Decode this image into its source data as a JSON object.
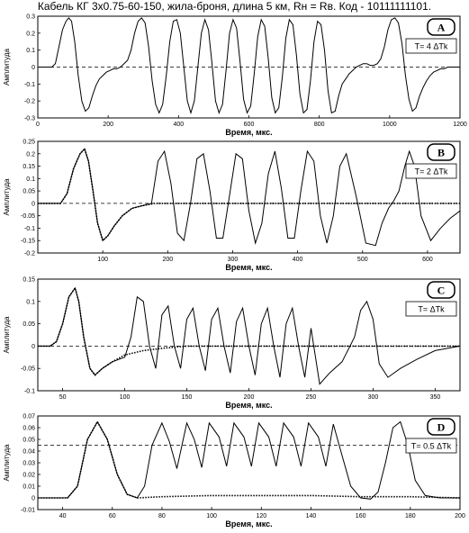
{
  "page": {
    "title": "Кабель КГ 3x0.75-60-150, жила-броня, длина 5 км, Rн = Rв. Код - 10111111101."
  },
  "chart_data": [
    {
      "type": "line",
      "badge": "A",
      "annotation": "T= 4 ΔTk",
      "xlabel": "Время,  мкс.",
      "ylabel": "Амплитуда",
      "xlim": [
        0,
        1200
      ],
      "ylim": [
        -0.3,
        0.3
      ],
      "xticks": [
        0,
        200,
        400,
        600,
        800,
        1000,
        1200
      ],
      "yticks": [
        -0.3,
        -0.2,
        -0.1,
        0,
        0.1,
        0.2,
        0.3
      ],
      "ytick_labels": [
        "-0.3",
        "-0.2",
        "-0.1",
        "0",
        "0.1",
        "0.2",
        "0.3"
      ],
      "baseline": 0,
      "series": [
        {
          "style": "solid",
          "x": [
            0,
            40,
            50,
            60,
            70,
            80,
            88,
            96,
            105,
            115,
            125,
            135,
            145,
            155,
            165,
            175,
            185,
            195,
            205,
            215,
            225,
            235,
            245,
            255,
            265,
            275,
            285,
            295,
            305,
            315,
            325,
            335,
            345,
            355,
            365,
            375,
            385,
            395,
            405,
            415,
            425,
            435,
            445,
            455,
            465,
            475,
            485,
            495,
            505,
            515,
            525,
            535,
            545,
            555,
            565,
            575,
            585,
            595,
            605,
            615,
            625,
            635,
            645,
            655,
            665,
            675,
            685,
            695,
            705,
            715,
            725,
            735,
            745,
            755,
            765,
            775,
            785,
            795,
            805,
            815,
            825,
            835,
            845,
            855,
            865,
            875,
            885,
            895,
            905,
            915,
            925,
            935,
            945,
            955,
            965,
            975,
            985,
            995,
            1005,
            1015,
            1025,
            1035,
            1045,
            1055,
            1065,
            1075,
            1085,
            1095,
            1105,
            1115,
            1125,
            1135,
            1145,
            1155,
            1165,
            1175,
            1185,
            1200
          ],
          "y": [
            0,
            0,
            0.02,
            0.12,
            0.22,
            0.27,
            0.29,
            0.27,
            0.15,
            -0.05,
            -0.2,
            -0.26,
            -0.24,
            -0.17,
            -0.11,
            -0.07,
            -0.05,
            -0.03,
            -0.02,
            -0.01,
            -0.01,
            0.0,
            0.02,
            0.04,
            0.1,
            0.2,
            0.27,
            0.29,
            0.26,
            0.12,
            -0.08,
            -0.22,
            -0.27,
            -0.22,
            -0.05,
            0.15,
            0.27,
            0.28,
            0.2,
            0.0,
            -0.2,
            -0.27,
            -0.2,
            0.0,
            0.2,
            0.28,
            0.22,
            0.02,
            -0.2,
            -0.27,
            -0.22,
            -0.02,
            0.2,
            0.28,
            0.23,
            0.03,
            -0.19,
            -0.27,
            -0.23,
            -0.04,
            0.18,
            0.28,
            0.24,
            0.05,
            -0.18,
            -0.27,
            -0.24,
            -0.06,
            0.17,
            0.28,
            0.25,
            0.07,
            -0.16,
            -0.27,
            -0.25,
            -0.08,
            0.15,
            0.27,
            0.25,
            0.1,
            -0.14,
            -0.27,
            -0.26,
            -0.17,
            -0.1,
            -0.07,
            -0.04,
            -0.02,
            0.0,
            0.01,
            0.02,
            0.02,
            0.01,
            0.01,
            0.02,
            0.05,
            0.12,
            0.22,
            0.28,
            0.29,
            0.26,
            0.14,
            -0.05,
            -0.19,
            -0.26,
            -0.24,
            -0.17,
            -0.12,
            -0.08,
            -0.05,
            -0.03,
            -0.02,
            -0.01,
            -0.01,
            0.0,
            0.0,
            0.0,
            0.0
          ]
        }
      ]
    },
    {
      "type": "line",
      "badge": "B",
      "annotation": "T= 2 ΔTk",
      "xlabel": "Время,  мкс.",
      "ylabel": "Амплитуда",
      "xlim": [
        0,
        650
      ],
      "ylim": [
        -0.2,
        0.25
      ],
      "xticks": [
        100,
        200,
        300,
        400,
        500,
        600
      ],
      "yticks": [
        -0.2,
        -0.15,
        -0.1,
        -0.05,
        0,
        0.05,
        0.1,
        0.15,
        0.2,
        0.25
      ],
      "ytick_labels": [
        "-0.2",
        "-0.15",
        "-0.1",
        "-0.05",
        "0",
        "0.05",
        "0.1",
        "0.15",
        "0.2",
        "0.25"
      ],
      "baseline": 0,
      "series": [
        {
          "style": "solid",
          "x": [
            0,
            35,
            45,
            55,
            65,
            72,
            78,
            85,
            92,
            100,
            108,
            118,
            130,
            145,
            160,
            175,
            185,
            195,
            205,
            215,
            225,
            235,
            245,
            255,
            265,
            275,
            285,
            295,
            305,
            315,
            325,
            335,
            345,
            355,
            365,
            375,
            385,
            395,
            405,
            415,
            425,
            435,
            445,
            455,
            465,
            475,
            490,
            505,
            520,
            530,
            540,
            548,
            556,
            565,
            572,
            580,
            590,
            605,
            620,
            635,
            650
          ],
          "y": [
            0,
            0.0,
            0.04,
            0.14,
            0.2,
            0.22,
            0.17,
            0.05,
            -0.08,
            -0.15,
            -0.13,
            -0.09,
            -0.05,
            -0.02,
            -0.01,
            0.0,
            0.17,
            0.21,
            0.08,
            -0.12,
            -0.15,
            0.0,
            0.18,
            0.2,
            0.05,
            -0.14,
            -0.14,
            0.03,
            0.2,
            0.18,
            -0.03,
            -0.16,
            -0.08,
            0.12,
            0.21,
            0.06,
            -0.14,
            -0.14,
            0.05,
            0.21,
            0.17,
            -0.05,
            -0.16,
            -0.05,
            0.15,
            0.2,
            0.03,
            -0.16,
            -0.17,
            -0.08,
            -0.02,
            0.01,
            0.05,
            0.15,
            0.21,
            0.15,
            -0.05,
            -0.15,
            -0.1,
            -0.06,
            -0.03
          ]
        },
        {
          "style": "dotted",
          "x": [
            0,
            35,
            45,
            55,
            65,
            72,
            78,
            85,
            92,
            100,
            108,
            118,
            130,
            145,
            160,
            180,
            200,
            240,
            280,
            320,
            360,
            400,
            440,
            480,
            520,
            560,
            600,
            650
          ],
          "y": [
            0,
            0.0,
            0.04,
            0.14,
            0.2,
            0.22,
            0.17,
            0.05,
            -0.08,
            -0.15,
            -0.13,
            -0.09,
            -0.05,
            -0.02,
            -0.01,
            0.0,
            0.0,
            0.0,
            0.0,
            0.0,
            0.0,
            0.0,
            0.0,
            0.0,
            0.0,
            0.0,
            0.0,
            0.0
          ]
        }
      ]
    },
    {
      "type": "line",
      "badge": "C",
      "annotation": "T= ΔTk",
      "xlabel": "Время,  мкс.",
      "ylabel": "Амплитуда",
      "xlim": [
        30,
        370
      ],
      "ylim": [
        -0.1,
        0.15
      ],
      "xticks": [
        50,
        100,
        150,
        200,
        250,
        300,
        350
      ],
      "yticks": [
        -0.1,
        -0.05,
        0,
        0.05,
        0.1,
        0.15
      ],
      "ytick_labels": [
        "-0.1",
        "-0.05",
        "0",
        "0.05",
        "0.1",
        "0.15"
      ],
      "baseline": 0,
      "series": [
        {
          "style": "solid",
          "x": [
            30,
            40,
            45,
            50,
            55,
            60,
            63,
            67,
            72,
            76,
            82,
            90,
            100,
            105,
            110,
            115,
            120,
            125,
            130,
            135,
            140,
            145,
            150,
            155,
            160,
            165,
            170,
            175,
            180,
            185,
            190,
            195,
            200,
            205,
            210,
            215,
            220,
            225,
            230,
            235,
            240,
            245,
            250,
            257,
            265,
            275,
            285,
            290,
            295,
            300,
            305,
            312,
            322,
            335,
            350,
            370
          ],
          "y": [
            0,
            0.0,
            0.01,
            0.05,
            0.11,
            0.13,
            0.1,
            0.02,
            -0.05,
            -0.065,
            -0.05,
            -0.035,
            -0.025,
            0.02,
            0.11,
            0.1,
            0.0,
            -0.05,
            0.07,
            0.09,
            0.0,
            -0.05,
            0.06,
            0.085,
            0.0,
            -0.055,
            0.06,
            0.085,
            0.0,
            -0.06,
            0.055,
            0.085,
            0.0,
            -0.065,
            0.05,
            0.085,
            0.0,
            -0.07,
            0.05,
            0.085,
            0.0,
            -0.07,
            0.04,
            -0.085,
            -0.06,
            -0.035,
            0.02,
            0.08,
            0.1,
            0.06,
            -0.04,
            -0.07,
            -0.05,
            -0.03,
            -0.01,
            0.0
          ]
        },
        {
          "style": "dotted",
          "x": [
            30,
            40,
            45,
            50,
            55,
            60,
            63,
            67,
            72,
            76,
            82,
            90,
            100,
            115,
            130,
            150,
            175,
            200,
            250,
            300,
            350,
            370
          ],
          "y": [
            0,
            0.0,
            0.01,
            0.05,
            0.11,
            0.13,
            0.1,
            0.02,
            -0.05,
            -0.065,
            -0.05,
            -0.035,
            -0.02,
            -0.01,
            -0.005,
            0.0,
            0.0,
            0.0,
            0.0,
            0.0,
            0.0,
            0.0
          ]
        }
      ]
    },
    {
      "type": "line",
      "badge": "D",
      "annotation": "T= 0.5 ΔTk",
      "xlabel": "Время,  мкс.",
      "ylabel": "Амплитуда",
      "xlim": [
        30,
        200
      ],
      "ylim": [
        -0.01,
        0.07
      ],
      "xticks": [
        40,
        60,
        80,
        100,
        120,
        140,
        160,
        180,
        200
      ],
      "yticks": [
        -0.01,
        0,
        0.01,
        0.02,
        0.03,
        0.04,
        0.05,
        0.06,
        0.07
      ],
      "ytick_labels": [
        "-0.01",
        "0",
        "0.01",
        "0.02",
        "0.03",
        "0.04",
        "0.05",
        "0.06",
        "0.07"
      ],
      "baseline": 0.045,
      "series": [
        {
          "style": "solid",
          "x": [
            30,
            42,
            46,
            50,
            54,
            58,
            62,
            66,
            70,
            73,
            76,
            80,
            83,
            86,
            90,
            93,
            96,
            99,
            103,
            106,
            109,
            113,
            116,
            119,
            123,
            126,
            129,
            133,
            136,
            139,
            143,
            146,
            149,
            152,
            156,
            160,
            164,
            167,
            170,
            173,
            176,
            179,
            182,
            186,
            192,
            200
          ],
          "y": [
            0,
            0.0,
            0.01,
            0.05,
            0.065,
            0.05,
            0.02,
            0.003,
            0.0,
            0.01,
            0.045,
            0.064,
            0.048,
            0.025,
            0.064,
            0.05,
            0.026,
            0.064,
            0.052,
            0.027,
            0.064,
            0.052,
            0.027,
            0.064,
            0.052,
            0.027,
            0.064,
            0.052,
            0.027,
            0.064,
            0.052,
            0.027,
            0.063,
            0.04,
            0.01,
            0.0,
            -0.001,
            0.005,
            0.03,
            0.06,
            0.065,
            0.045,
            0.015,
            0.002,
            0.0,
            0.0
          ]
        },
        {
          "style": "dotted",
          "x": [
            30,
            42,
            46,
            50,
            54,
            58,
            62,
            66,
            70,
            80,
            100,
            120,
            140,
            160,
            180,
            200
          ],
          "y": [
            0,
            0.0,
            0.01,
            0.05,
            0.065,
            0.05,
            0.02,
            0.003,
            0.0,
            0.001,
            0.002,
            0.002,
            0.002,
            0.001,
            0.001,
            0.0
          ]
        }
      ]
    }
  ]
}
